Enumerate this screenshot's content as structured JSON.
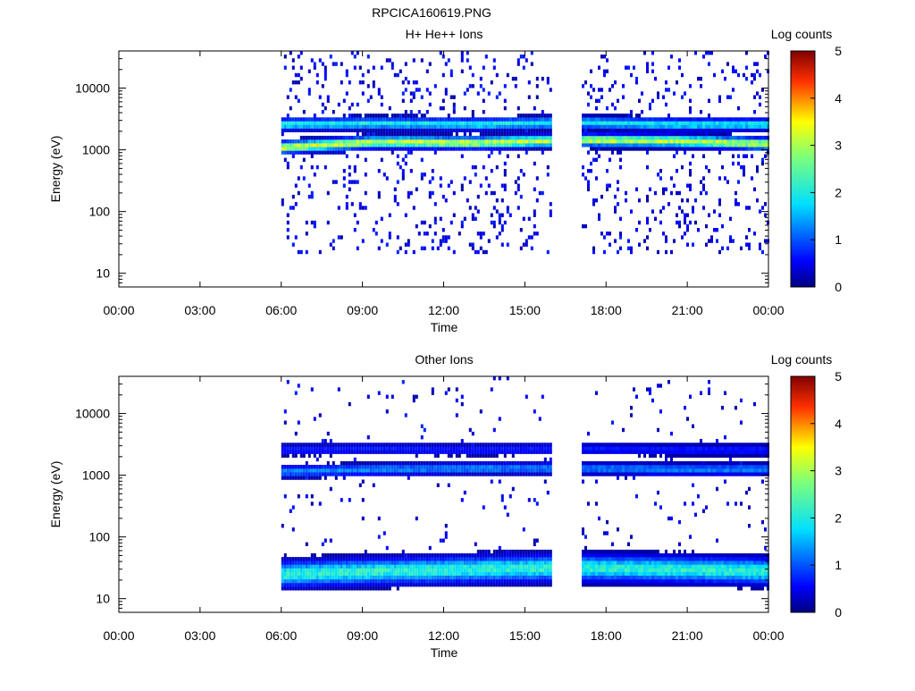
{
  "figure": {
    "title": "RPCICA160619.PNG"
  },
  "chart_data": [
    {
      "type": "heatmap",
      "title": "H+ He++ Ions",
      "xlabel": "Time",
      "ylabel": "Energy (eV)",
      "colorbar_label": "Log counts",
      "x_ticks": [
        "00:00",
        "03:00",
        "06:00",
        "09:00",
        "12:00",
        "15:00",
        "18:00",
        "21:00",
        "00:00"
      ],
      "xlim_hours": [
        0,
        24
      ],
      "y_scale": "log",
      "ylim": [
        6,
        40000
      ],
      "y_ticks": [
        10,
        100,
        1000,
        10000
      ],
      "y_tick_labels": [
        "10",
        "100",
        "1000",
        "10000"
      ],
      "colorbar_ticks": [
        "0",
        "1",
        "2",
        "3",
        "4",
        "5"
      ],
      "clim": [
        0,
        5
      ],
      "data_intervals_hours": [
        [
          6.0,
          16.0
        ],
        [
          17.1,
          24.0
        ]
      ],
      "bands": [
        {
          "name": "H+ main band",
          "center_eV": [
            1100,
            1350,
            1300,
            1450,
            1400,
            1250
          ],
          "peak_log_counts": 3.3
        },
        {
          "name": "He++ band",
          "center_eV": [
            2600,
            2700,
            2600,
            2800,
            2600,
            2600
          ],
          "peak_log_counts": 2.0
        }
      ]
    },
    {
      "type": "heatmap",
      "title": "Other Ions",
      "xlabel": "Time",
      "ylabel": "Energy (eV)",
      "colorbar_label": "Log counts",
      "x_ticks": [
        "00:00",
        "03:00",
        "06:00",
        "09:00",
        "12:00",
        "15:00",
        "18:00",
        "21:00",
        "00:00"
      ],
      "xlim_hours": [
        0,
        24
      ],
      "y_scale": "log",
      "ylim": [
        6,
        40000
      ],
      "y_ticks": [
        10,
        100,
        1000,
        10000
      ],
      "y_tick_labels": [
        "10",
        "100",
        "1000",
        "10000"
      ],
      "colorbar_ticks": [
        "0",
        "1",
        "2",
        "3",
        "4",
        "5"
      ],
      "clim": [
        0,
        5
      ],
      "data_intervals_hours": [
        [
          6.0,
          16.0
        ],
        [
          17.1,
          24.0
        ]
      ],
      "bands": [
        {
          "name": "low-energy band",
          "center_eV": [
            25,
            28,
            30,
            32,
            30,
            28
          ],
          "peak_log_counts": 2.2
        },
        {
          "name": "~1200 eV band",
          "center_eV": [
            1150,
            1250,
            1300,
            1300,
            1250,
            1250
          ],
          "peak_log_counts": 1.3
        },
        {
          "name": "~2600 eV band",
          "center_eV": [
            2600,
            2700,
            2600,
            2700,
            2600,
            2600
          ],
          "peak_log_counts": 0.7
        }
      ]
    }
  ]
}
